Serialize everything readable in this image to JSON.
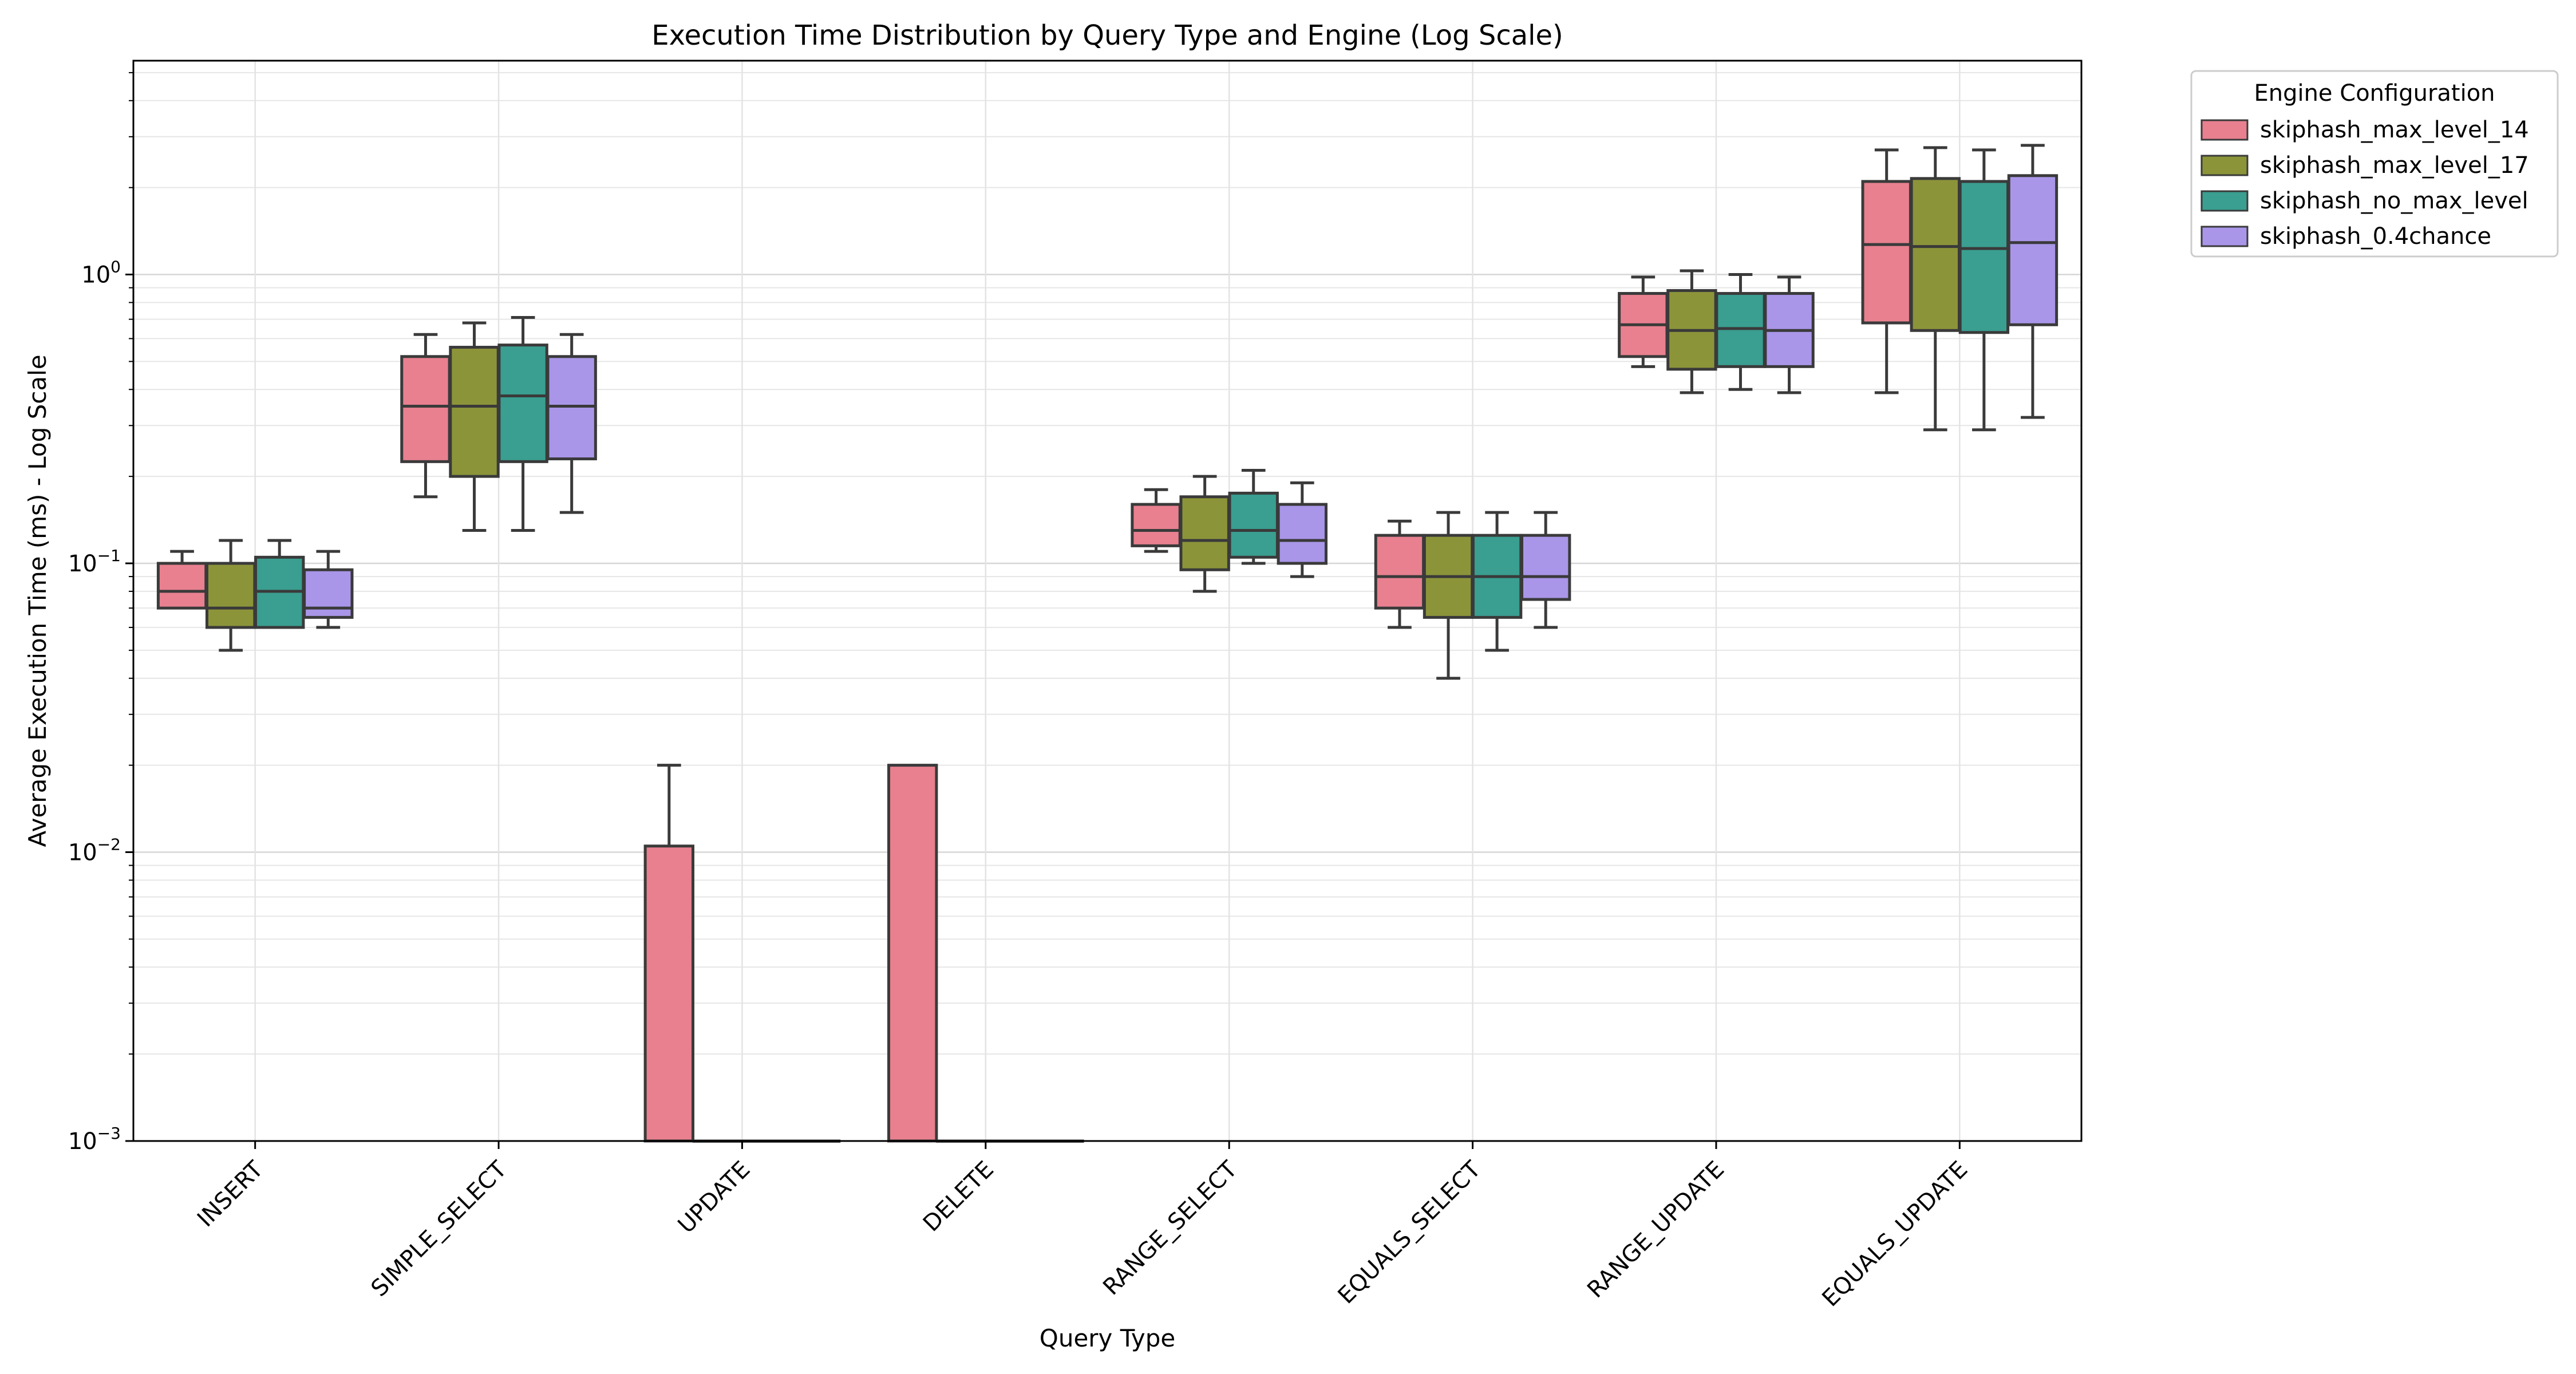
{
  "chart_data": {
    "type": "box",
    "title": "Execution Time Distribution by Query Type and Engine (Log Scale)",
    "xlabel": "Query Type",
    "ylabel": "Average Execution Time (ms) - Log Scale",
    "yscale": "log",
    "ylim": [
      0.001,
      5.5
    ],
    "y_ticks": [
      {
        "value": 0.001,
        "base": "10",
        "exp": "−3"
      },
      {
        "value": 0.01,
        "base": "10",
        "exp": "−2"
      },
      {
        "value": 0.1,
        "base": "10",
        "exp": "−1"
      },
      {
        "value": 1,
        "base": "10",
        "exp": "0"
      }
    ],
    "grid": true,
    "legend": {
      "title": "Engine Configuration",
      "placement": "outside-top-right"
    },
    "categories": [
      "INSERT",
      "SIMPLE_SELECT",
      "UPDATE",
      "DELETE",
      "RANGE_SELECT",
      "EQUALS_SELECT",
      "RANGE_UPDATE",
      "EQUALS_UPDATE"
    ],
    "series": [
      {
        "name": "skiphash_max_level_14",
        "color": "#e8808f",
        "boxes": [
          {
            "whislo": 0.07,
            "q1": 0.07,
            "med": 0.08,
            "q3": 0.1,
            "whishi": 0.11
          },
          {
            "whislo": 0.17,
            "q1": 0.225,
            "med": 0.35,
            "q3": 0.52,
            "whishi": 0.62
          },
          {
            "whislo": 0.001,
            "q1": 0.001,
            "med": 0.001,
            "q3": 0.0105,
            "whishi": 0.02
          },
          {
            "whislo": 0.001,
            "q1": 0.001,
            "med": 0.001,
            "q3": 0.02,
            "whishi": 0.02
          },
          {
            "whislo": 0.11,
            "q1": 0.115,
            "med": 0.13,
            "q3": 0.16,
            "whishi": 0.18
          },
          {
            "whislo": 0.06,
            "q1": 0.07,
            "med": 0.09,
            "q3": 0.125,
            "whishi": 0.14
          },
          {
            "whislo": 0.48,
            "q1": 0.52,
            "med": 0.67,
            "q3": 0.86,
            "whishi": 0.98
          },
          {
            "whislo": 0.39,
            "q1": 0.68,
            "med": 1.27,
            "q3": 2.1,
            "whishi": 2.7
          }
        ]
      },
      {
        "name": "skiphash_max_level_17",
        "color": "#8c943a",
        "boxes": [
          {
            "whislo": 0.05,
            "q1": 0.06,
            "med": 0.07,
            "q3": 0.1,
            "whishi": 0.12
          },
          {
            "whislo": 0.13,
            "q1": 0.2,
            "med": 0.35,
            "q3": 0.56,
            "whishi": 0.68
          },
          {
            "whislo": 0.001,
            "q1": 0.001,
            "med": 0.001,
            "q3": 0.001,
            "whishi": 0.001
          },
          {
            "whislo": 0.001,
            "q1": 0.001,
            "med": 0.001,
            "q3": 0.001,
            "whishi": 0.001
          },
          {
            "whislo": 0.08,
            "q1": 0.095,
            "med": 0.12,
            "q3": 0.17,
            "whishi": 0.2
          },
          {
            "whislo": 0.04,
            "q1": 0.065,
            "med": 0.09,
            "q3": 0.125,
            "whishi": 0.15
          },
          {
            "whislo": 0.39,
            "q1": 0.47,
            "med": 0.64,
            "q3": 0.88,
            "whishi": 1.03
          },
          {
            "whislo": 0.29,
            "q1": 0.64,
            "med": 1.25,
            "q3": 2.15,
            "whishi": 2.75
          }
        ]
      },
      {
        "name": "skiphash_no_max_level",
        "color": "#3a9e90",
        "boxes": [
          {
            "whislo": 0.06,
            "q1": 0.06,
            "med": 0.08,
            "q3": 0.105,
            "whishi": 0.12
          },
          {
            "whislo": 0.13,
            "q1": 0.225,
            "med": 0.38,
            "q3": 0.57,
            "whishi": 0.71
          },
          {
            "whislo": 0.001,
            "q1": 0.001,
            "med": 0.001,
            "q3": 0.001,
            "whishi": 0.001
          },
          {
            "whislo": 0.001,
            "q1": 0.001,
            "med": 0.001,
            "q3": 0.001,
            "whishi": 0.001
          },
          {
            "whislo": 0.1,
            "q1": 0.105,
            "med": 0.13,
            "q3": 0.175,
            "whishi": 0.21
          },
          {
            "whislo": 0.05,
            "q1": 0.065,
            "med": 0.09,
            "q3": 0.125,
            "whishi": 0.15
          },
          {
            "whislo": 0.4,
            "q1": 0.48,
            "med": 0.65,
            "q3": 0.86,
            "whishi": 1.0
          },
          {
            "whislo": 0.29,
            "q1": 0.63,
            "med": 1.23,
            "q3": 2.1,
            "whishi": 2.7
          }
        ]
      },
      {
        "name": "skiphash_0.4chance",
        "color": "#a996e8",
        "boxes": [
          {
            "whislo": 0.06,
            "q1": 0.065,
            "med": 0.07,
            "q3": 0.095,
            "whishi": 0.11
          },
          {
            "whislo": 0.15,
            "q1": 0.23,
            "med": 0.35,
            "q3": 0.52,
            "whishi": 0.62
          },
          {
            "whislo": 0.001,
            "q1": 0.001,
            "med": 0.001,
            "q3": 0.001,
            "whishi": 0.001
          },
          {
            "whislo": 0.001,
            "q1": 0.001,
            "med": 0.001,
            "q3": 0.001,
            "whishi": 0.001
          },
          {
            "whislo": 0.09,
            "q1": 0.1,
            "med": 0.12,
            "q3": 0.16,
            "whishi": 0.19
          },
          {
            "whislo": 0.06,
            "q1": 0.075,
            "med": 0.09,
            "q3": 0.125,
            "whishi": 0.15
          },
          {
            "whislo": 0.39,
            "q1": 0.48,
            "med": 0.64,
            "q3": 0.86,
            "whishi": 0.98
          },
          {
            "whislo": 0.32,
            "q1": 0.67,
            "med": 1.29,
            "q3": 2.2,
            "whishi": 2.8
          }
        ]
      }
    ]
  }
}
